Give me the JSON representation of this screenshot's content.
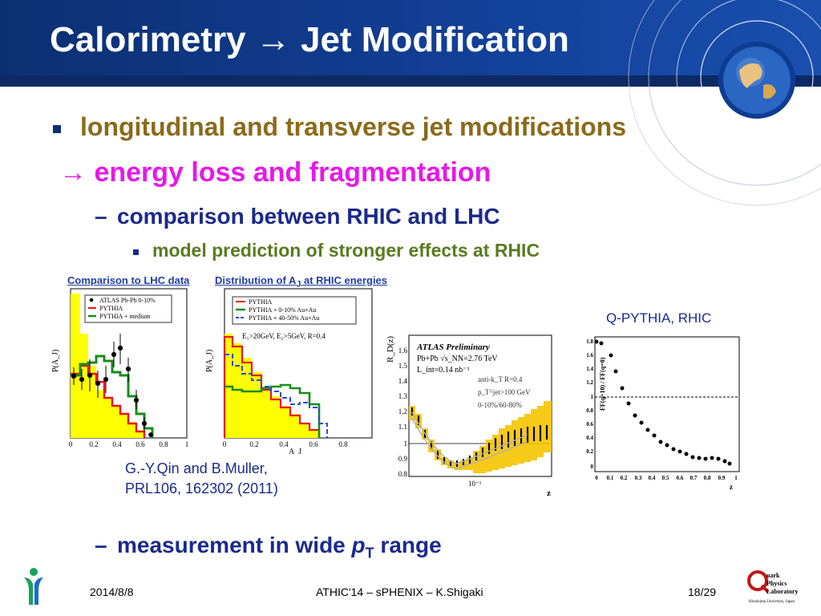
{
  "title": "Calorimetry → Jet Modification",
  "bullets": {
    "l1": "longitudinal and transverse jet modifications",
    "arrow": "→ energy loss and fragmentation",
    "dash": "–",
    "l3": "comparison between RHIC and LHC",
    "l4": "model prediction of stronger effects at RHIC",
    "l5_pre": "measurement in wide ",
    "l5_p": "p",
    "l5_sub": "T",
    "l5_post": " range"
  },
  "plots": {
    "lhc_title": "Comparison to LHC data",
    "lhc_legend": [
      "ATLAS Pb-Pb 0-10%",
      "PYTHIA",
      "PYTHIA + medium"
    ],
    "rhic_title": "Distribution of A",
    "rhic_title_sub": "J",
    "rhic_title_post": " at RHIC energies",
    "rhic_legend": [
      "PYTHIA",
      "PYTHIA + 0-10% Au+Au",
      "PYTHIA + 40-50% Au+Au"
    ],
    "rhic_note": "E₁>20GeV, E₂>5GeV, R=0.4",
    "ylabel": "P(A_J)",
    "xlabel": "A_J",
    "x_ticks": [
      "0",
      "0.2",
      "0.4",
      "0.6",
      "0.8",
      "1"
    ],
    "atlas_title": "ATLAS Preliminary",
    "atlas_lines": [
      "Pb+Pb √s_NN=2.76 TeV",
      "L_int=0.14 nb⁻¹",
      "anti-k_T R=0.4",
      "p_T^jet>100 GeV",
      "0-10%/60-80%"
    ],
    "atlas_ylabel": "R_D(z)",
    "atlas_yticks": [
      "1.6",
      "1.5",
      "1.4",
      "1.3",
      "1.2",
      "1.1",
      "1",
      "0.9",
      "0.8"
    ],
    "atlas_xtick": "10⁻¹",
    "atlas_xlabel": "z",
    "qp_ylabel": "FF(q=10) / FF(q=0)",
    "qp_yticks": [
      "1.8",
      "1.6",
      "1.4",
      "1.2",
      "1",
      "0.8",
      "0.6",
      "0.4",
      "0.2",
      "0"
    ],
    "qp_xticks": [
      "0",
      "0.1",
      "0.2",
      "0.3",
      "0.4",
      "0.5",
      "0.6",
      "0.7",
      "0.8",
      "0.9",
      "1"
    ],
    "qp_xlabel": "z"
  },
  "reference": [
    "G.-Y.Qin and B.Muller,",
    "PRL106, 162302 (2011)"
  ],
  "qpythia_label": "Q-PYTHIA, RHIC",
  "footer": {
    "date": "2014/8/8",
    "center": "ATHIC'14 – sPHENIX – K.Shigaki",
    "page": "18/29"
  },
  "logo": {
    "l1": "uark",
    "l2": "Physics",
    "l3": "Laboratory",
    "l4": "Hiroshima University, Japan"
  },
  "colors": {
    "header": "#123f95",
    "title_text": "#ffffff",
    "olive": "#8b6a1a",
    "magenta": "#e619e6",
    "navy": "#1a2a8c",
    "green_text": "#5a7a20",
    "pythia_yellow": "#ffff00",
    "atlas_band": "#f5c400"
  }
}
